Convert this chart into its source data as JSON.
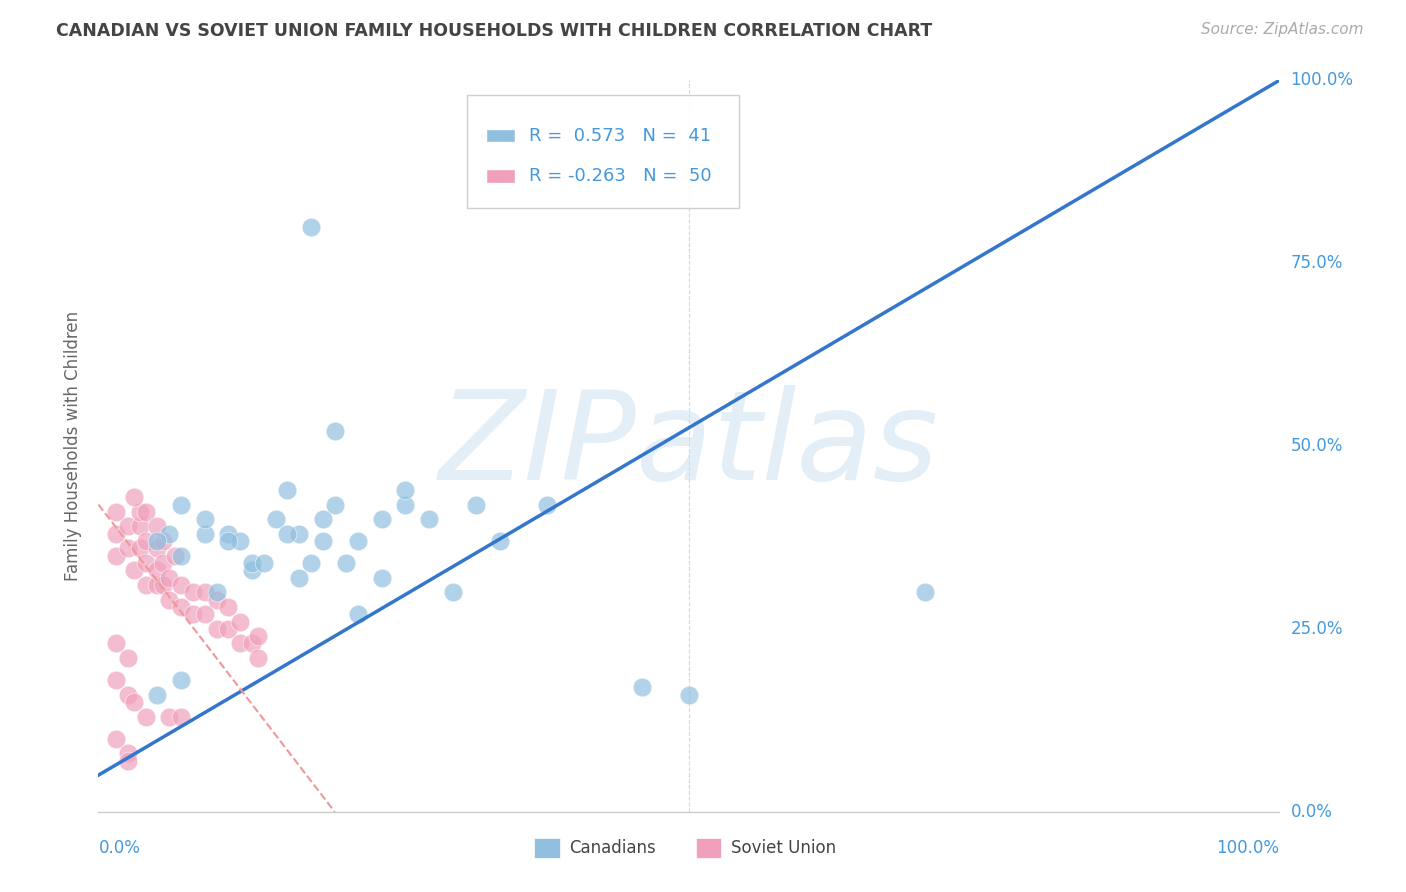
{
  "title": "CANADIAN VS SOVIET UNION FAMILY HOUSEHOLDS WITH CHILDREN CORRELATION CHART",
  "source": "Source: ZipAtlas.com",
  "ylabel": "Family Households with Children",
  "xlim": [
    0,
    1
  ],
  "ylim": [
    0,
    1
  ],
  "ytick_labels": [
    "0.0%",
    "25.0%",
    "50.0%",
    "75.0%",
    "100.0%"
  ],
  "ytick_positions": [
    0.0,
    0.25,
    0.5,
    0.75,
    1.0
  ],
  "canadian_R": 0.573,
  "canadian_N": 41,
  "soviet_R": -0.263,
  "soviet_N": 50,
  "legend_canadians": "Canadians",
  "legend_soviet": "Soviet Union",
  "canadian_color": "#90bfe0",
  "soviet_color": "#f0a0bc",
  "canadian_line_color": "#3377cc",
  "soviet_line_color": "#ee9999",
  "watermark_text": "ZIPatlas",
  "watermark_color": "#cce0f0",
  "background_color": "#ffffff",
  "grid_color": "#d8d8d8",
  "title_color": "#444444",
  "axis_label_color": "#4499dd",
  "canadian_x": [
    0.3,
    0.7,
    0.18,
    0.06,
    0.05,
    0.07,
    0.09,
    0.11,
    0.13,
    0.15,
    0.17,
    0.19,
    0.21,
    0.16,
    0.2,
    0.22,
    0.24,
    0.26,
    0.28,
    0.12,
    0.18,
    0.2,
    0.32,
    0.38,
    0.07,
    0.09,
    0.11,
    0.13,
    0.1,
    0.14,
    0.16,
    0.5,
    0.46,
    0.34,
    0.22,
    0.24,
    0.26,
    0.19,
    0.17,
    0.05,
    0.07
  ],
  "canadian_y": [
    0.3,
    0.3,
    0.8,
    0.38,
    0.37,
    0.35,
    0.38,
    0.38,
    0.33,
    0.4,
    0.38,
    0.37,
    0.34,
    0.44,
    0.42,
    0.37,
    0.4,
    0.42,
    0.4,
    0.37,
    0.34,
    0.52,
    0.42,
    0.42,
    0.42,
    0.4,
    0.37,
    0.34,
    0.3,
    0.34,
    0.38,
    0.16,
    0.17,
    0.37,
    0.27,
    0.32,
    0.44,
    0.4,
    0.32,
    0.16,
    0.18
  ],
  "soviet_x": [
    0.015,
    0.015,
    0.015,
    0.025,
    0.025,
    0.03,
    0.035,
    0.035,
    0.035,
    0.04,
    0.04,
    0.04,
    0.05,
    0.05,
    0.05,
    0.055,
    0.055,
    0.06,
    0.06,
    0.065,
    0.07,
    0.07,
    0.08,
    0.08,
    0.09,
    0.09,
    0.1,
    0.1,
    0.11,
    0.11,
    0.12,
    0.12,
    0.13,
    0.135,
    0.135,
    0.03,
    0.04,
    0.05,
    0.055,
    0.06,
    0.07,
    0.015,
    0.025,
    0.015,
    0.025,
    0.03,
    0.04,
    0.015,
    0.025,
    0.025
  ],
  "soviet_y": [
    0.35,
    0.38,
    0.41,
    0.36,
    0.39,
    0.33,
    0.36,
    0.39,
    0.41,
    0.31,
    0.34,
    0.37,
    0.31,
    0.33,
    0.36,
    0.31,
    0.34,
    0.29,
    0.32,
    0.35,
    0.28,
    0.31,
    0.27,
    0.3,
    0.27,
    0.3,
    0.25,
    0.29,
    0.25,
    0.28,
    0.23,
    0.26,
    0.23,
    0.21,
    0.24,
    0.43,
    0.41,
    0.39,
    0.37,
    0.13,
    0.13,
    0.23,
    0.21,
    0.18,
    0.16,
    0.15,
    0.13,
    0.1,
    0.08,
    0.07
  ]
}
